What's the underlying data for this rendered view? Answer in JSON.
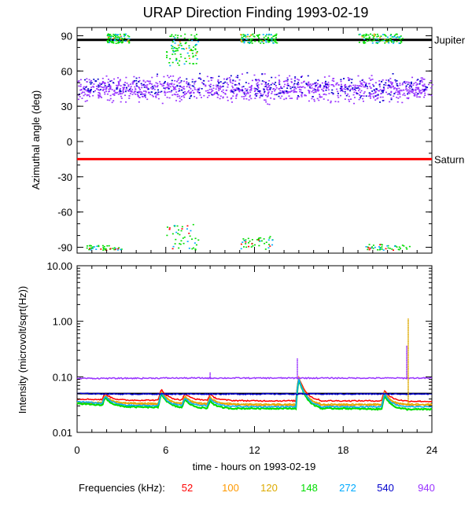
{
  "chart_data": [
    {
      "type": "scatter",
      "title": "URAP Direction Finding  1993-02-19",
      "xlabel": "",
      "ylabel": "Azimuthal angle (deg)",
      "xlim": [
        0,
        24
      ],
      "ylim": [
        -95,
        97
      ],
      "xticks": [
        "0",
        "6",
        "12",
        "18",
        "24"
      ],
      "yticks": [
        {
          "v": 90,
          "label": "90"
        },
        {
          "v": 60,
          "label": "60"
        },
        {
          "v": 30,
          "label": "30"
        },
        {
          "v": 0,
          "label": "0"
        },
        {
          "v": -30,
          "label": "-30"
        },
        {
          "v": -60,
          "label": "-60"
        },
        {
          "v": -90,
          "label": "-90"
        }
      ],
      "reference_lines": [
        {
          "name": "Jupiter",
          "value": 86.5,
          "color": "#000000"
        },
        {
          "name": "Saturn",
          "value": -15,
          "color": "#ff0000"
        }
      ],
      "series": [
        {
          "name": "940",
          "color": "#9933ff",
          "band": [
            30,
            60
          ],
          "center": 45
        },
        {
          "name": "540",
          "color": "#0000cc",
          "band": [
            32,
            62
          ],
          "center": 47
        },
        {
          "name": "148",
          "color": "#00dd00",
          "band": [
            84,
            92
          ],
          "center": 88
        },
        {
          "name": "272",
          "color": "#00aaff",
          "band": [
            65,
            90
          ],
          "center": 80
        }
      ],
      "lower_clusters": [
        {
          "x_start": 0.5,
          "x_end": 3.0,
          "y_range": [
            -92,
            -88
          ]
        },
        {
          "x_start": 6.0,
          "x_end": 8.2,
          "y_range": [
            -92,
            -70
          ]
        },
        {
          "x_start": 11.0,
          "x_end": 13.2,
          "y_range": [
            -92,
            -80
          ]
        },
        {
          "x_start": 19.5,
          "x_end": 22.5,
          "y_range": [
            -92,
            -87
          ]
        }
      ],
      "upper_clusters": [
        {
          "x_start": 2.0,
          "x_end": 3.5,
          "y_range": [
            84,
            92
          ]
        },
        {
          "x_start": 6.0,
          "x_end": 8.2,
          "y_range": [
            65,
            92
          ]
        },
        {
          "x_start": 11.0,
          "x_end": 13.5,
          "y_range": [
            84,
            92
          ]
        },
        {
          "x_start": 19.0,
          "x_end": 22.0,
          "y_range": [
            84,
            92
          ]
        }
      ]
    },
    {
      "type": "line",
      "title": "",
      "xlabel": "time - hours on 1993-02-19",
      "ylabel": "Intensity (microvolt/sqrt(Hz))",
      "xlim": [
        0,
        24
      ],
      "ylim": [
        0.01,
        10
      ],
      "yscale": "log",
      "xticks": [
        "0",
        "6",
        "12",
        "18",
        "24"
      ],
      "yticks": [
        {
          "v": 10,
          "label": "10.00"
        },
        {
          "v": 1,
          "label": "1.00"
        },
        {
          "v": 0.1,
          "label": "0.10"
        },
        {
          "v": 0.01,
          "label": "0.01"
        }
      ],
      "reference_lines": [
        {
          "value": 0.05,
          "color": "#000000"
        }
      ],
      "bursts": [
        {
          "x": 1.9,
          "height": 0.012
        },
        {
          "x": 5.7,
          "height": 0.022
        },
        {
          "x": 7.3,
          "height": 0.012
        },
        {
          "x": 9.0,
          "height": 0.01
        },
        {
          "x": 15.0,
          "height": 0.06
        },
        {
          "x": 20.8,
          "height": 0.02
        }
      ],
      "spikes": [
        {
          "x": 9.0,
          "series": "940",
          "peak": 0.125
        },
        {
          "x": 14.9,
          "series": "940",
          "peak": 0.22
        },
        {
          "x": 22.3,
          "series": "940",
          "peak": 0.37
        },
        {
          "x": 22.4,
          "series": "120",
          "peak": 1.15
        }
      ],
      "series": [
        {
          "name": "52",
          "color": "#ff0000",
          "values": [
            0.04,
            0.038,
            0.038,
            0.038,
            0.037,
            0.037,
            0.037,
            0.037,
            0.036
          ]
        },
        {
          "name": "100",
          "color": "#ff9900",
          "values": [
            0.034,
            0.033,
            0.032,
            0.032,
            0.031,
            0.031,
            0.031,
            0.031,
            0.031
          ]
        },
        {
          "name": "120",
          "color": "#ddaa00",
          "values": [
            0.035,
            0.034,
            0.033,
            0.033,
            0.032,
            0.032,
            0.032,
            0.032,
            0.032
          ]
        },
        {
          "name": "148",
          "color": "#00dd00",
          "values": [
            0.033,
            0.029,
            0.028,
            0.027,
            0.027,
            0.027,
            0.027,
            0.026,
            0.026
          ]
        },
        {
          "name": "272",
          "color": "#00aaff",
          "values": [
            0.036,
            0.031,
            0.03,
            0.03,
            0.029,
            0.029,
            0.029,
            0.029,
            0.029
          ]
        },
        {
          "name": "540",
          "color": "#0000cc",
          "values": [
            0.05,
            0.049,
            0.049,
            0.049,
            0.049,
            0.049,
            0.049,
            0.049,
            0.049
          ]
        },
        {
          "name": "940",
          "color": "#9933ff",
          "values": [
            0.094,
            0.094,
            0.095,
            0.095,
            0.095,
            0.095,
            0.095,
            0.095,
            0.095
          ]
        }
      ],
      "sample_hours": [
        0,
        3,
        6,
        9,
        12,
        15,
        18,
        21,
        24
      ]
    }
  ],
  "legend": {
    "label": "Frequencies (kHz):",
    "items": [
      {
        "text": "52",
        "color": "#ff0000"
      },
      {
        "text": "100",
        "color": "#ff9900"
      },
      {
        "text": "120",
        "color": "#ddaa00"
      },
      {
        "text": "148",
        "color": "#00dd00"
      },
      {
        "text": "272",
        "color": "#00aaff"
      },
      {
        "text": "540",
        "color": "#0000cc"
      },
      {
        "text": "940",
        "color": "#9933ff"
      }
    ]
  }
}
